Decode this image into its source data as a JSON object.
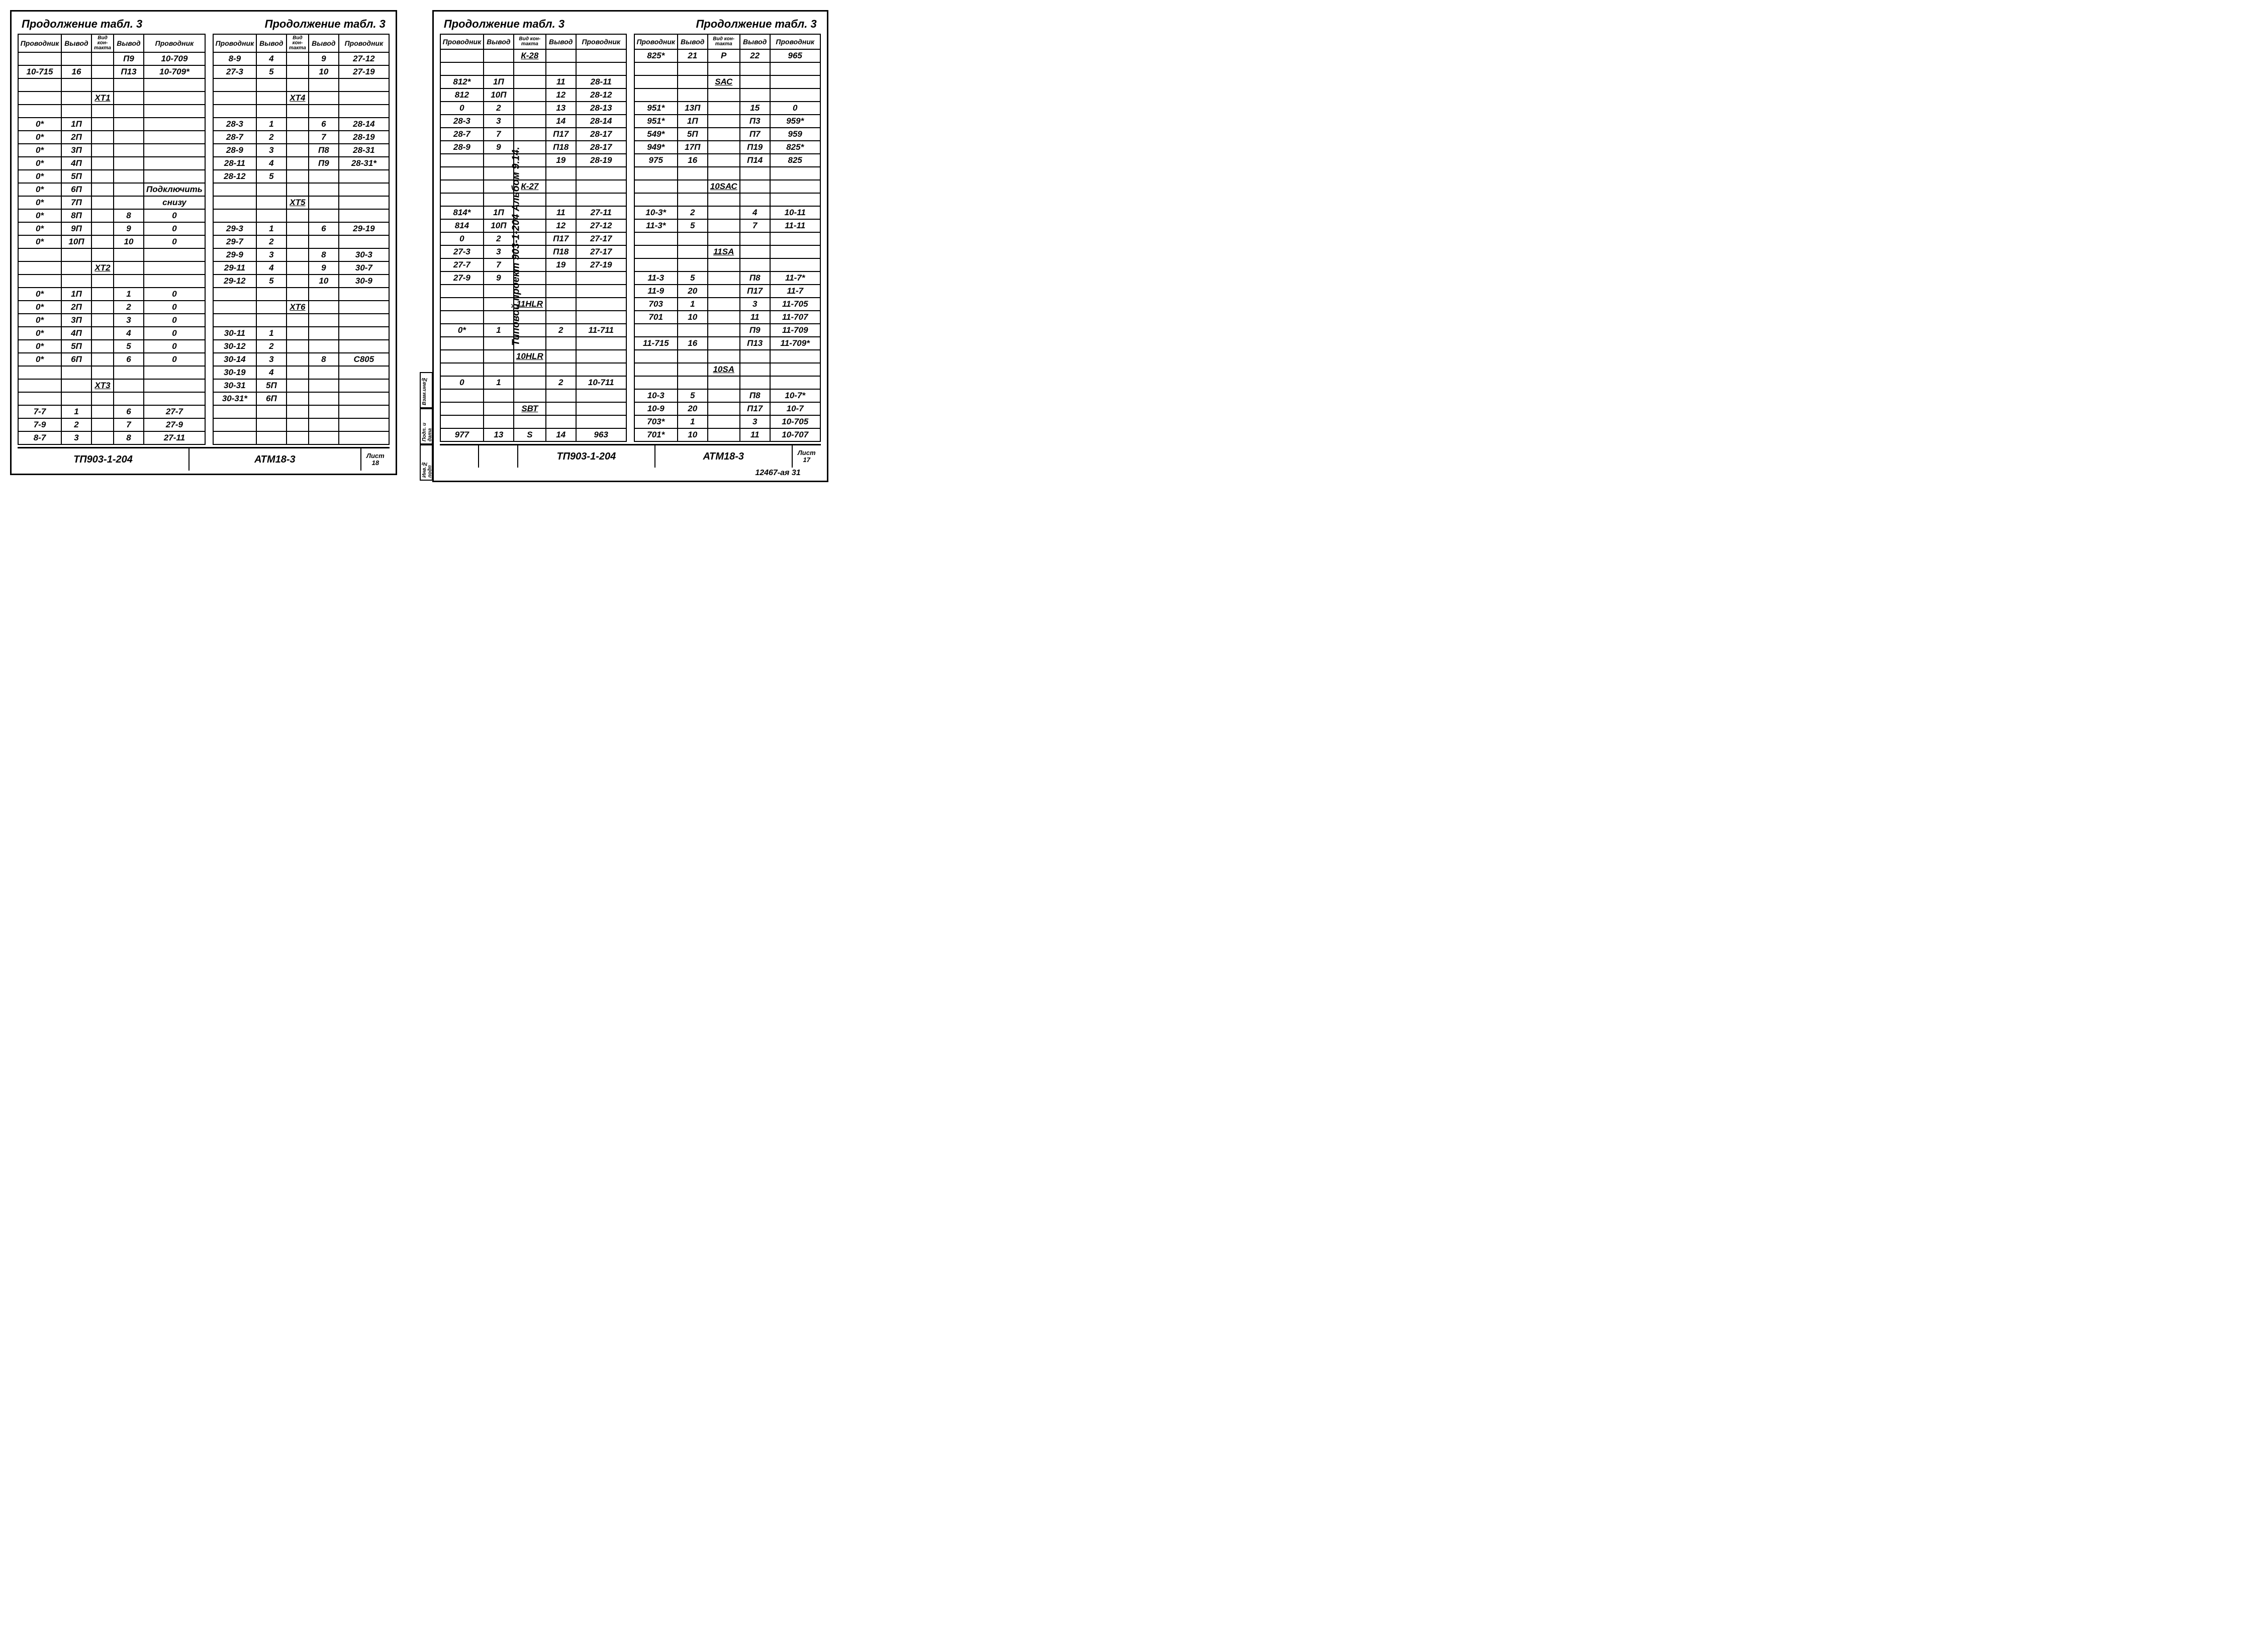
{
  "global": {
    "cont_label": "Продолжение  табл. 3",
    "headers": {
      "provodnik": "Проводник",
      "vyvod": "Вывод",
      "vid": "Вид кон-такта"
    },
    "footer_proj": "ТП903-1-204",
    "footer_doc": "АТМ18-3",
    "sheet_word": "Лист"
  },
  "sheet_left": {
    "sheet_no": "18",
    "tableA": [
      [
        "",
        "",
        "",
        "П9",
        "10-709"
      ],
      [
        "10-715",
        "16",
        "",
        "П13",
        "10-709*"
      ],
      [
        "",
        "",
        "",
        "",
        ""
      ],
      [
        "",
        "",
        "ХТ1",
        "",
        ""
      ],
      [
        "",
        "",
        "",
        "",
        ""
      ],
      [
        "0*",
        "1П",
        "",
        "",
        ""
      ],
      [
        "0*",
        "2П",
        "",
        "",
        ""
      ],
      [
        "0*",
        "3П",
        "",
        "",
        ""
      ],
      [
        "0*",
        "4П",
        "",
        "",
        ""
      ],
      [
        "0*",
        "5П",
        "",
        "",
        ""
      ],
      [
        "0*",
        "6П",
        "",
        "",
        "Подключить"
      ],
      [
        "0*",
        "7П",
        "",
        "",
        "снизу"
      ],
      [
        "0*",
        "8П",
        "",
        "8",
        "0"
      ],
      [
        "0*",
        "9П",
        "",
        "9",
        "0"
      ],
      [
        "0*",
        "10П",
        "",
        "10",
        "0"
      ],
      [
        "",
        "",
        "",
        "",
        ""
      ],
      [
        "",
        "",
        "ХТ2",
        "",
        ""
      ],
      [
        "",
        "",
        "",
        "",
        ""
      ],
      [
        "0*",
        "1П",
        "",
        "1",
        "0"
      ],
      [
        "0*",
        "2П",
        "",
        "2",
        "0"
      ],
      [
        "0*",
        "3П",
        "",
        "3",
        "0"
      ],
      [
        "0*",
        "4П",
        "",
        "4",
        "0"
      ],
      [
        "0*",
        "5П",
        "",
        "5",
        "0"
      ],
      [
        "0*",
        "6П",
        "",
        "6",
        "0"
      ],
      [
        "",
        "",
        "",
        "",
        ""
      ],
      [
        "",
        "",
        "ХТ3",
        "",
        ""
      ],
      [
        "",
        "",
        "",
        "",
        ""
      ],
      [
        "7-7",
        "1",
        "",
        "6",
        "27-7"
      ],
      [
        "7-9",
        "2",
        "",
        "7",
        "27-9"
      ],
      [
        "8-7",
        "3",
        "",
        "8",
        "27-11"
      ]
    ],
    "tableB": [
      [
        "8-9",
        "4",
        "",
        "9",
        "27-12"
      ],
      [
        "27-3",
        "5",
        "",
        "10",
        "27-19"
      ],
      [
        "",
        "",
        "",
        "",
        ""
      ],
      [
        "",
        "",
        "ХТ4",
        "",
        ""
      ],
      [
        "",
        "",
        "",
        "",
        ""
      ],
      [
        "28-3",
        "1",
        "",
        "6",
        "28-14"
      ],
      [
        "28-7",
        "2",
        "",
        "7",
        "28-19"
      ],
      [
        "28-9",
        "3",
        "",
        "П8",
        "28-31"
      ],
      [
        "28-11",
        "4",
        "",
        "П9",
        "28-31*"
      ],
      [
        "28-12",
        "5",
        "",
        "",
        ""
      ],
      [
        "",
        "",
        "",
        "",
        ""
      ],
      [
        "",
        "",
        "ХТ5",
        "",
        ""
      ],
      [
        "",
        "",
        "",
        "",
        ""
      ],
      [
        "29-3",
        "1",
        "",
        "6",
        "29-19"
      ],
      [
        "29-7",
        "2",
        "",
        "",
        ""
      ],
      [
        "29-9",
        "3",
        "",
        "8",
        "30-3"
      ],
      [
        "29-11",
        "4",
        "",
        "9",
        "30-7"
      ],
      [
        "29-12",
        "5",
        "",
        "10",
        "30-9"
      ],
      [
        "",
        "",
        "",
        "",
        ""
      ],
      [
        "",
        "",
        "ХТ6",
        "",
        ""
      ],
      [
        "",
        "",
        "",
        "",
        ""
      ],
      [
        "30-11",
        "1",
        "",
        "",
        ""
      ],
      [
        "30-12",
        "2",
        "",
        "",
        ""
      ],
      [
        "30-14",
        "3",
        "",
        "8",
        "С805"
      ],
      [
        "30-19",
        "4",
        "",
        "",
        ""
      ],
      [
        "30-31",
        "5П",
        "",
        "",
        ""
      ],
      [
        "30-31*",
        "6П",
        "",
        "",
        ""
      ],
      [
        "",
        "",
        "",
        "",
        ""
      ],
      [
        "",
        "",
        "",
        "",
        ""
      ],
      [
        "",
        "",
        "",
        "",
        ""
      ]
    ]
  },
  "sheet_right": {
    "sheet_no": "17",
    "side_text": "Типовой  проект 903-1-204     Альбом 9.14.",
    "below_text": "12467-ая  31",
    "tableA": [
      [
        "",
        "",
        "К-28",
        "",
        ""
      ],
      [
        "",
        "",
        "",
        "",
        ""
      ],
      [
        "812*",
        "1П",
        "",
        "11",
        "28-11"
      ],
      [
        "812",
        "10П",
        "",
        "12",
        "28-12"
      ],
      [
        "0",
        "2",
        "",
        "13",
        "28-13"
      ],
      [
        "28-3",
        "3",
        "",
        "14",
        "28-14"
      ],
      [
        "28-7",
        "7",
        "",
        "П17",
        "28-17"
      ],
      [
        "28-9",
        "9",
        "",
        "П18",
        "28-17"
      ],
      [
        "",
        "",
        "",
        "19",
        "28-19"
      ],
      [
        "",
        "",
        "",
        "",
        ""
      ],
      [
        "",
        "",
        "К-27",
        "",
        ""
      ],
      [
        "",
        "",
        "",
        "",
        ""
      ],
      [
        "814*",
        "1П",
        "",
        "11",
        "27-11"
      ],
      [
        "814",
        "10П",
        "",
        "12",
        "27-12"
      ],
      [
        "0",
        "2",
        "",
        "П17",
        "27-17"
      ],
      [
        "27-3",
        "3",
        "",
        "П18",
        "27-17"
      ],
      [
        "27-7",
        "7",
        "",
        "19",
        "27-19"
      ],
      [
        "27-9",
        "9",
        "",
        "",
        ""
      ],
      [
        "",
        "",
        "",
        "",
        ""
      ],
      [
        "",
        "",
        "11HLR",
        "",
        ""
      ],
      [
        "",
        "",
        "",
        "",
        ""
      ],
      [
        "0*",
        "1",
        "",
        "2",
        "11-711"
      ],
      [
        "",
        "",
        "",
        "",
        ""
      ],
      [
        "",
        "",
        "10HLR",
        "",
        ""
      ],
      [
        "",
        "",
        "",
        "",
        ""
      ],
      [
        "0",
        "1",
        "",
        "2",
        "10-711"
      ],
      [
        "",
        "",
        "",
        "",
        ""
      ],
      [
        "",
        "",
        "SВТ",
        "",
        ""
      ],
      [
        "",
        "",
        "",
        "",
        ""
      ],
      [
        "977",
        "13",
        "S",
        "14",
        "963"
      ]
    ],
    "tableB": [
      [
        "825*",
        "21",
        "P",
        "22",
        "965"
      ],
      [
        "",
        "",
        "",
        "",
        ""
      ],
      [
        "",
        "",
        "SАС",
        "",
        ""
      ],
      [
        "",
        "",
        "",
        "",
        ""
      ],
      [
        "951*",
        "13П",
        "",
        "15",
        "0"
      ],
      [
        "951*",
        "1П",
        "",
        "П3",
        "959*"
      ],
      [
        "549*",
        "5П",
        "",
        "П7",
        "959"
      ],
      [
        "949*",
        "17П",
        "",
        "П19",
        "825*"
      ],
      [
        "975",
        "16",
        "",
        "П14",
        "825"
      ],
      [
        "",
        "",
        "",
        "",
        ""
      ],
      [
        "",
        "",
        "10SАС",
        "",
        ""
      ],
      [
        "",
        "",
        "",
        "",
        ""
      ],
      [
        "10-3*",
        "2",
        "",
        "4",
        "10-11"
      ],
      [
        "11-3*",
        "5",
        "",
        "7",
        "11-11"
      ],
      [
        "",
        "",
        "",
        "",
        ""
      ],
      [
        "",
        "",
        "11SА",
        "",
        ""
      ],
      [
        "",
        "",
        "",
        "",
        ""
      ],
      [
        "11-3",
        "5",
        "",
        "П8",
        "11-7*"
      ],
      [
        "11-9",
        "20",
        "",
        "П17",
        "11-7"
      ],
      [
        "703",
        "1",
        "",
        "3",
        "11-705"
      ],
      [
        "701",
        "10",
        "",
        "11",
        "11-707"
      ],
      [
        "",
        "",
        "",
        "П9",
        "11-709"
      ],
      [
        "11-715",
        "16",
        "",
        "П13",
        "11-709*"
      ],
      [
        "",
        "",
        "",
        "",
        ""
      ],
      [
        "",
        "",
        "10SА",
        "",
        ""
      ],
      [
        "",
        "",
        "",
        "",
        ""
      ],
      [
        "10-3",
        "5",
        "",
        "П8",
        "10-7*"
      ],
      [
        "10-9",
        "20",
        "",
        "П17",
        "10-7"
      ],
      [
        "703*",
        "1",
        "",
        "3",
        "10-705"
      ],
      [
        "701*",
        "10",
        "",
        "11",
        "10-707"
      ]
    ]
  }
}
